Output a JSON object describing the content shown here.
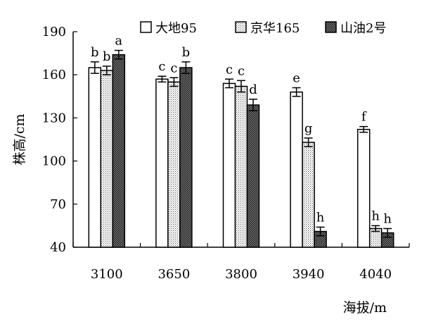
{
  "chart_data": {
    "type": "bar",
    "xlabel": "海拔/m",
    "ylabel": "株高/cm",
    "ylim": [
      40,
      190
    ],
    "yticks": [
      40,
      70,
      100,
      130,
      160,
      190
    ],
    "categories": [
      "3100",
      "3650",
      "3800",
      "3940",
      "4040"
    ],
    "series": [
      {
        "name": "大地95",
        "pattern": "white",
        "values": [
          165,
          157,
          154,
          148,
          122
        ],
        "errors": [
          4,
          2,
          3,
          3,
          2
        ],
        "labels": [
          "b",
          "c",
          "c",
          "e",
          "f"
        ]
      },
      {
        "name": "京华165",
        "pattern": "fine-dots",
        "values": [
          163,
          155,
          152,
          113,
          53
        ],
        "errors": [
          3,
          3,
          4,
          3,
          2
        ],
        "labels": [
          "b",
          "c",
          "c",
          "g",
          "h"
        ]
      },
      {
        "name": "山油2号",
        "pattern": "dense-dots",
        "values": [
          174,
          165,
          139,
          51,
          50
        ],
        "errors": [
          3,
          4,
          4,
          3,
          3
        ],
        "labels": [
          "a",
          "b",
          "d",
          "h",
          "h"
        ]
      }
    ],
    "legend_position": "top-right",
    "grid": false
  }
}
